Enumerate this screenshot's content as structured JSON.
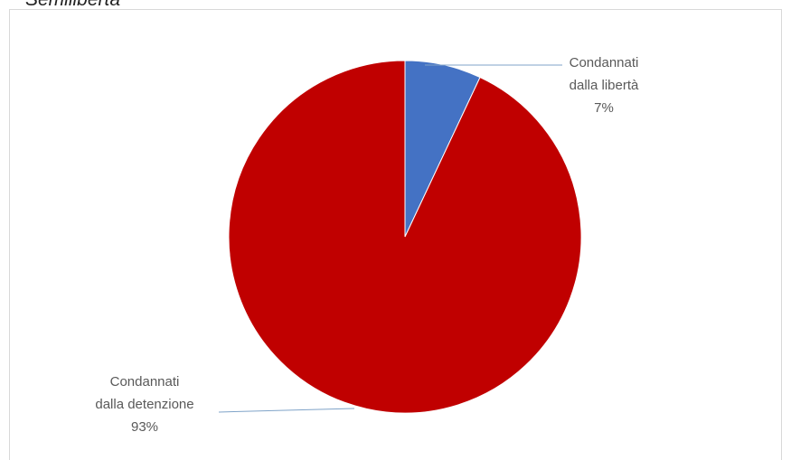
{
  "caption": "Semilibertà",
  "chart_data": {
    "type": "pie",
    "slices": [
      {
        "label_line1": "Condannati",
        "label_line2": "dalla libertà",
        "percent_label": "7%",
        "value": 7,
        "color": "#4472C4"
      },
      {
        "label_line1": "Condannati",
        "label_line2": "dalla detenzione",
        "percent_label": "93%",
        "value": 93,
        "color": "#C00000"
      }
    ],
    "start_angle_deg": 0,
    "direction": "clockwise",
    "legend": "none",
    "leader_line_color": "#7fa3c8"
  }
}
